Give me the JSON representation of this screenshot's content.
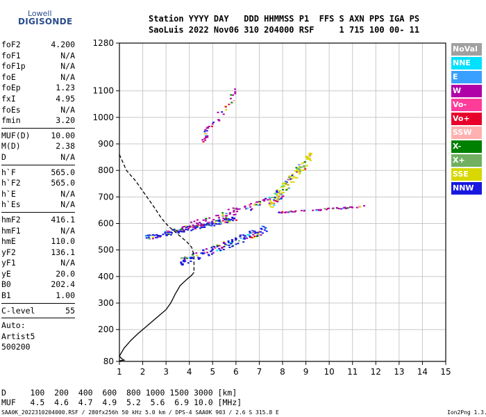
{
  "logo": {
    "line1": "Lowell",
    "line2": "DIGISONDE"
  },
  "header": {
    "row1": "Station YYYY DAY   DDD HHMMSS P1  FFS S AXN PPS IGA PS",
    "row2": "SaoLuis 2022 Nov06 310 204000 RSF     1 715 100 00- 11"
  },
  "params": [
    [
      {
        "name": "foF2",
        "value": "4.200"
      },
      {
        "name": "foF1",
        "value": "N/A"
      },
      {
        "name": "foF1p",
        "value": "N/A"
      },
      {
        "name": "foE",
        "value": "N/A"
      },
      {
        "name": "foEp",
        "value": "1.23"
      },
      {
        "name": "fxI",
        "value": "4.95"
      },
      {
        "name": "foEs",
        "value": "N/A"
      },
      {
        "name": "fmin",
        "value": "3.20"
      }
    ],
    [
      {
        "name": "MUF(D)",
        "value": "10.00"
      },
      {
        "name": "M(D)",
        "value": "2.38"
      },
      {
        "name": "D",
        "value": "N/A"
      }
    ],
    [
      {
        "name": "h`F",
        "value": "565.0"
      },
      {
        "name": "h`F2",
        "value": "565.0"
      },
      {
        "name": "h`E",
        "value": "N/A"
      },
      {
        "name": "h`Es",
        "value": "N/A"
      }
    ],
    [
      {
        "name": "hmF2",
        "value": "416.1"
      },
      {
        "name": "hmF1",
        "value": "N/A"
      },
      {
        "name": "hmE",
        "value": "110.0"
      },
      {
        "name": "yF2",
        "value": "136.1"
      },
      {
        "name": "yF1",
        "value": "N/A"
      },
      {
        "name": "yE",
        "value": "20.0"
      },
      {
        "name": "B0",
        "value": "202.4"
      },
      {
        "name": "B1",
        "value": "1.00"
      }
    ],
    [
      {
        "name": "C-level",
        "value": "55"
      }
    ],
    [
      {
        "name": "Auto:",
        "value": ""
      },
      {
        "name": "Artist5",
        "value": ""
      },
      {
        "name": "500200",
        "value": ""
      }
    ]
  ],
  "legend": [
    {
      "label": "NoVal",
      "color": "#a0a0a0"
    },
    {
      "label": "NNE",
      "color": "#00e0ff"
    },
    {
      "label": "E",
      "color": "#3aa0ff"
    },
    {
      "label": "W",
      "color": "#b000a8"
    },
    {
      "label": "Vo-",
      "color": "#ff3c9a"
    },
    {
      "label": "Vo+",
      "color": "#e8002a"
    },
    {
      "label": "SSW",
      "color": "#ffb0b0"
    },
    {
      "label": "X-",
      "color": "#008000"
    },
    {
      "label": "X+",
      "color": "#70b060"
    },
    {
      "label": "SSE",
      "color": "#d8d800"
    },
    {
      "label": "NNW",
      "color": "#1818e0"
    }
  ],
  "muf_table": {
    "row_d": "D     100  200  400  600  800 1000 1500 3000 [km]",
    "row_muf": "MUF   4.5  4.6  4.7  4.9  5.2  5.6  6.9 10.0 [MHz]"
  },
  "footer": {
    "left": "SAA0K_2022310204000.RSF / 280fx256h 50 kHz 5.0 km / DPS-4 SAA0K 903 / 2.6 S 315.8 E",
    "right": "Ion2Png 1.3.17"
  },
  "chart_data": {
    "type": "scatter",
    "x_ticks": [
      1,
      2,
      3,
      4,
      5,
      6,
      7,
      8,
      9,
      10,
      11,
      12,
      13,
      14,
      15
    ],
    "y_ticks": [
      80,
      200,
      300,
      400,
      500,
      600,
      700,
      800,
      900,
      1000,
      1100,
      1280
    ],
    "xlim": [
      1,
      15
    ],
    "ylim": [
      80,
      1280
    ],
    "grid": true,
    "profile_dashed": [
      [
        1,
        860
      ],
      [
        1.3,
        800
      ],
      [
        1.7,
        760
      ],
      [
        2.1,
        710
      ],
      [
        2.5,
        660
      ],
      [
        2.8,
        620
      ],
      [
        3.1,
        590
      ],
      [
        3.5,
        560
      ],
      [
        3.9,
        530
      ],
      [
        4.1,
        510
      ],
      [
        4.2,
        480
      ],
      [
        4.2,
        450
      ],
      [
        4.2,
        416
      ]
    ],
    "profile_solid": [
      [
        4.2,
        416
      ],
      [
        4.1,
        405
      ],
      [
        3.9,
        390
      ],
      [
        3.6,
        365
      ],
      [
        3.4,
        335
      ],
      [
        3.2,
        300
      ],
      [
        3.0,
        275
      ],
      [
        2.6,
        245
      ],
      [
        2.2,
        215
      ],
      [
        1.8,
        185
      ],
      [
        1.5,
        160
      ],
      [
        1.2,
        130
      ],
      [
        1.0,
        100
      ],
      [
        1.1,
        90
      ],
      [
        1.2,
        85
      ],
      [
        1.0,
        82
      ]
    ],
    "clusters": [
      {
        "name": "o-trace F2 lower",
        "color": "#1818e0",
        "x0": 2.1,
        "x1": 6.0,
        "y0": 540,
        "y1": 630,
        "n": 150
      },
      {
        "name": "o-trace F2 rising",
        "color": "#b000a8",
        "x0": 3.6,
        "x1": 8.0,
        "y0": 570,
        "y1": 720,
        "n": 110
      },
      {
        "name": "x-trace lower",
        "color": "#1818e0",
        "x0": 3.6,
        "x1": 7.3,
        "y0": 440,
        "y1": 600,
        "n": 140
      },
      {
        "name": "cusp cluster",
        "color": "#d8d800",
        "x0": 7.4,
        "x1": 9.2,
        "y0": 650,
        "y1": 880,
        "n": 120
      },
      {
        "name": "spread tail",
        "color": "#b000a8",
        "x0": 7.8,
        "x1": 11.5,
        "y0": 640,
        "y1": 670,
        "n": 50
      },
      {
        "name": "upper branch",
        "color": "#b000a8",
        "x0": 4.5,
        "x1": 6.0,
        "y0": 900,
        "y1": 1120,
        "n": 40
      }
    ]
  }
}
